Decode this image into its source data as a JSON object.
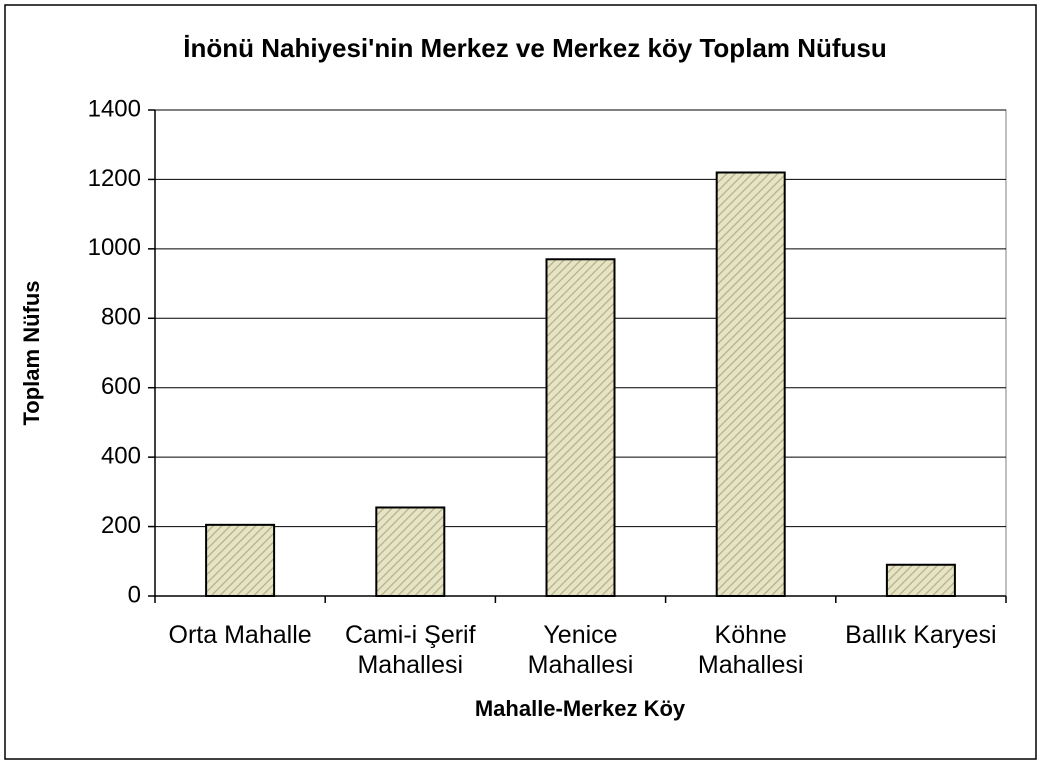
{
  "chart_data": {
    "type": "bar",
    "title": "İnönü Nahiyesi'nin Merkez ve Merkez köy Toplam Nüfusu",
    "x_label": "Mahalle-Merkez Köy",
    "y_label": "Toplam Nüfus",
    "categories": [
      "Orta Mahalle",
      "Cami-i Şerif Mahallesi",
      "Yenice Mahallesi",
      "Köhne Mahallesi",
      "Ballık Karyesi"
    ],
    "values": [
      205,
      255,
      970,
      1220,
      90
    ],
    "color": "#e6e4c4",
    "ylim": [
      0,
      1400
    ],
    "yticks": [
      0,
      200,
      400,
      600,
      800,
      1000,
      1200,
      1400
    ],
    "grid": true
  }
}
